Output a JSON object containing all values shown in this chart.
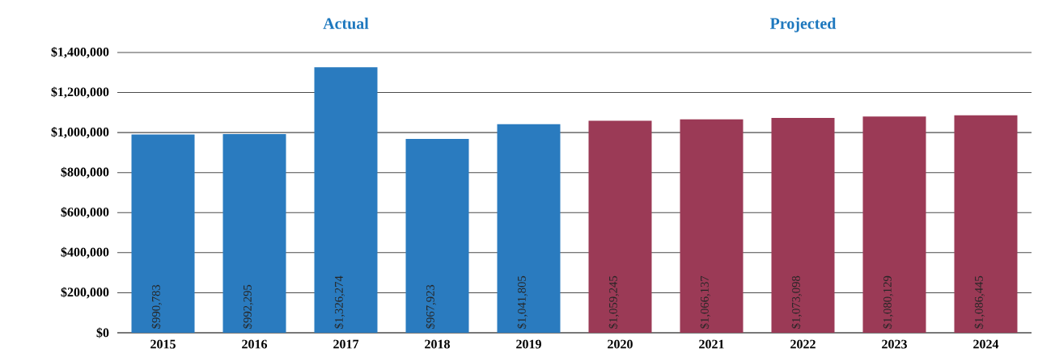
{
  "chart_data": {
    "type": "bar",
    "annotations": [
      "Actual",
      "Projected"
    ],
    "categories": [
      "2015",
      "2016",
      "2017",
      "2018",
      "2019",
      "2020",
      "2021",
      "2022",
      "2023",
      "2024"
    ],
    "series": [
      {
        "color": "#2a7bbf",
        "values": [
          990783,
          992295,
          1326274,
          967923,
          1041805,
          null,
          null,
          null,
          null,
          null
        ],
        "value_labels": [
          "$990,783",
          "$992,295",
          "$1,326,274",
          "$967,923",
          "$1,041,805",
          null,
          null,
          null,
          null,
          null
        ]
      },
      {
        "color": "#9b3a56",
        "values": [
          null,
          null,
          null,
          null,
          null,
          1059245,
          1066137,
          1073098,
          1080129,
          1086445
        ],
        "value_labels": [
          null,
          null,
          null,
          null,
          null,
          "$1,059,245",
          "$1,066,137",
          "$1,073,098",
          "$1,080,129",
          "$1,086,445"
        ]
      }
    ],
    "ylim": [
      0,
      1400000
    ],
    "yticks": [
      {
        "value": 0,
        "label": "$0"
      },
      {
        "value": 200000,
        "label": "$200,000"
      },
      {
        "value": 400000,
        "label": "$400,000"
      },
      {
        "value": 600000,
        "label": "$600,000"
      },
      {
        "value": 800000,
        "label": "$800,000"
      },
      {
        "value": 1000000,
        "label": "$1,000,000"
      },
      {
        "value": 1200000,
        "label": "$1,200,000"
      },
      {
        "value": 1400000,
        "label": "$1,400,000"
      }
    ],
    "grid": "y"
  }
}
